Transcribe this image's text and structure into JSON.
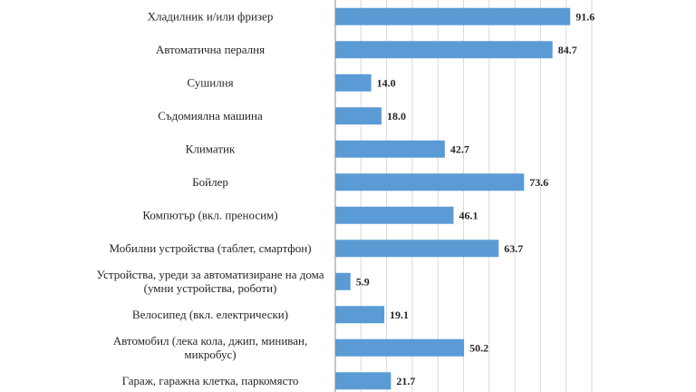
{
  "chart_data": {
    "type": "bar",
    "orientation": "horizontal",
    "categories": [
      [
        "Хладилник и/или фризер"
      ],
      [
        "Автоматична пералня"
      ],
      [
        "Сушилня"
      ],
      [
        "Съдомиялна машина"
      ],
      [
        "Климатик"
      ],
      [
        "Бойлер"
      ],
      [
        "Компютър (вкл. преносим)"
      ],
      [
        "Мобилни устройства (таблет, смартфон)"
      ],
      [
        "Устройства, уреди за автоматизиране на дома",
        "(умни устройства, роботи)"
      ],
      [
        "Велосипед (вкл. електрически)"
      ],
      [
        "Автомобил (лека кола, джип, миниван,",
        "микробус)"
      ],
      [
        "Гараж, гаражна клетка, паркомясто"
      ]
    ],
    "values": [
      91.6,
      84.7,
      14.0,
      18.0,
      42.7,
      73.6,
      46.1,
      63.7,
      5.9,
      19.1,
      50.2,
      21.7
    ],
    "value_labels": [
      "91.6",
      "84.7",
      "14.0",
      "18.0",
      "42.7",
      "73.6",
      "46.1",
      "63.7",
      "5.9",
      "19.1",
      "50.2",
      "21.7"
    ],
    "xlim": [
      0,
      100
    ],
    "gridlines": [
      0,
      10,
      20,
      30,
      40,
      50,
      60,
      70,
      80,
      90,
      100
    ],
    "grid": true,
    "bar_color": "#5b9bd5"
  }
}
